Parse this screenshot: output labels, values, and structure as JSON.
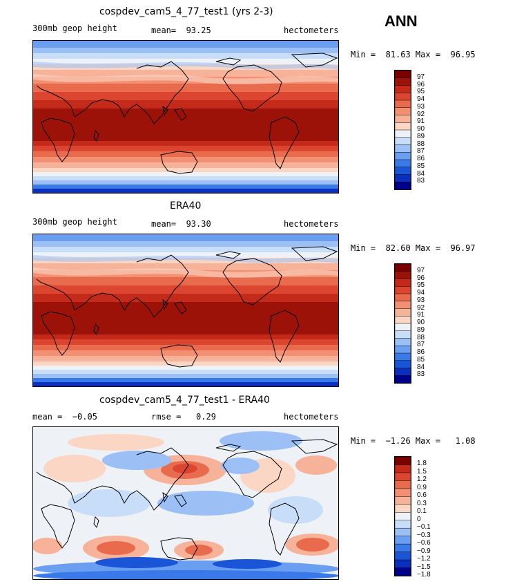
{
  "season": "ANN",
  "colors": {
    "abs_scale": [
      "#00008b",
      "#0a2fbf",
      "#1a55d8",
      "#3a7ae8",
      "#6a9ef0",
      "#9cc0f5",
      "#c8ddf8",
      "#eef2f6",
      "#fbd6c4",
      "#f7b39a",
      "#f38f72",
      "#e96b4e",
      "#dc4630",
      "#c42a1a",
      "#9c1208",
      "#7a0000"
    ],
    "diff_scale": [
      "#00008b",
      "#0a2fbf",
      "#1a55d8",
      "#3a7ae8",
      "#6a9ef0",
      "#9cc0f5",
      "#c8ddf8",
      "#eef2f6",
      "#fbd6c4",
      "#f7b39a",
      "#f38f72",
      "#e96b4e",
      "#dc4630",
      "#c42a1a",
      "#7a0000"
    ],
    "coastline": "#000000"
  },
  "panels": [
    {
      "title": "cospdev_cam5_4_77_test1 (yrs 2-3)",
      "left_label": "300mb geop height",
      "center_label": "mean=  93.25",
      "units": "hectometers",
      "minmax": "Min =  81.63 Max =  96.95",
      "kind": "abs",
      "ticks": [
        "97",
        "96",
        "95",
        "94",
        "93",
        "92",
        "91",
        "90",
        "89",
        "88",
        "87",
        "86",
        "85",
        "84",
        "83"
      ]
    },
    {
      "title": "ERA40",
      "left_label": "300mb geop height",
      "center_label": "mean=  93.30",
      "units": "hectometers",
      "minmax": "Min =  82.60 Max =  96.97",
      "kind": "abs",
      "ticks": [
        "97",
        "96",
        "95",
        "94",
        "93",
        "92",
        "91",
        "90",
        "89",
        "88",
        "87",
        "86",
        "85",
        "84",
        "83"
      ]
    },
    {
      "title": "cospdev_cam5_4_77_test1 - ERA40",
      "left_label": "mean =  −0.05",
      "center_label": "rmse =   0.29",
      "units": "hectometers",
      "minmax": "Min =  −1.26 Max =   1.08",
      "kind": "diff",
      "ticks": [
        "1.8",
        "1.5",
        "1.2",
        "0.9",
        "0.6",
        "0.3",
        "0.1",
        "0",
        "−0.1",
        "−0.3",
        "−0.6",
        "−0.9",
        "−1.2",
        "−1.5",
        "−1.8"
      ]
    }
  ]
}
